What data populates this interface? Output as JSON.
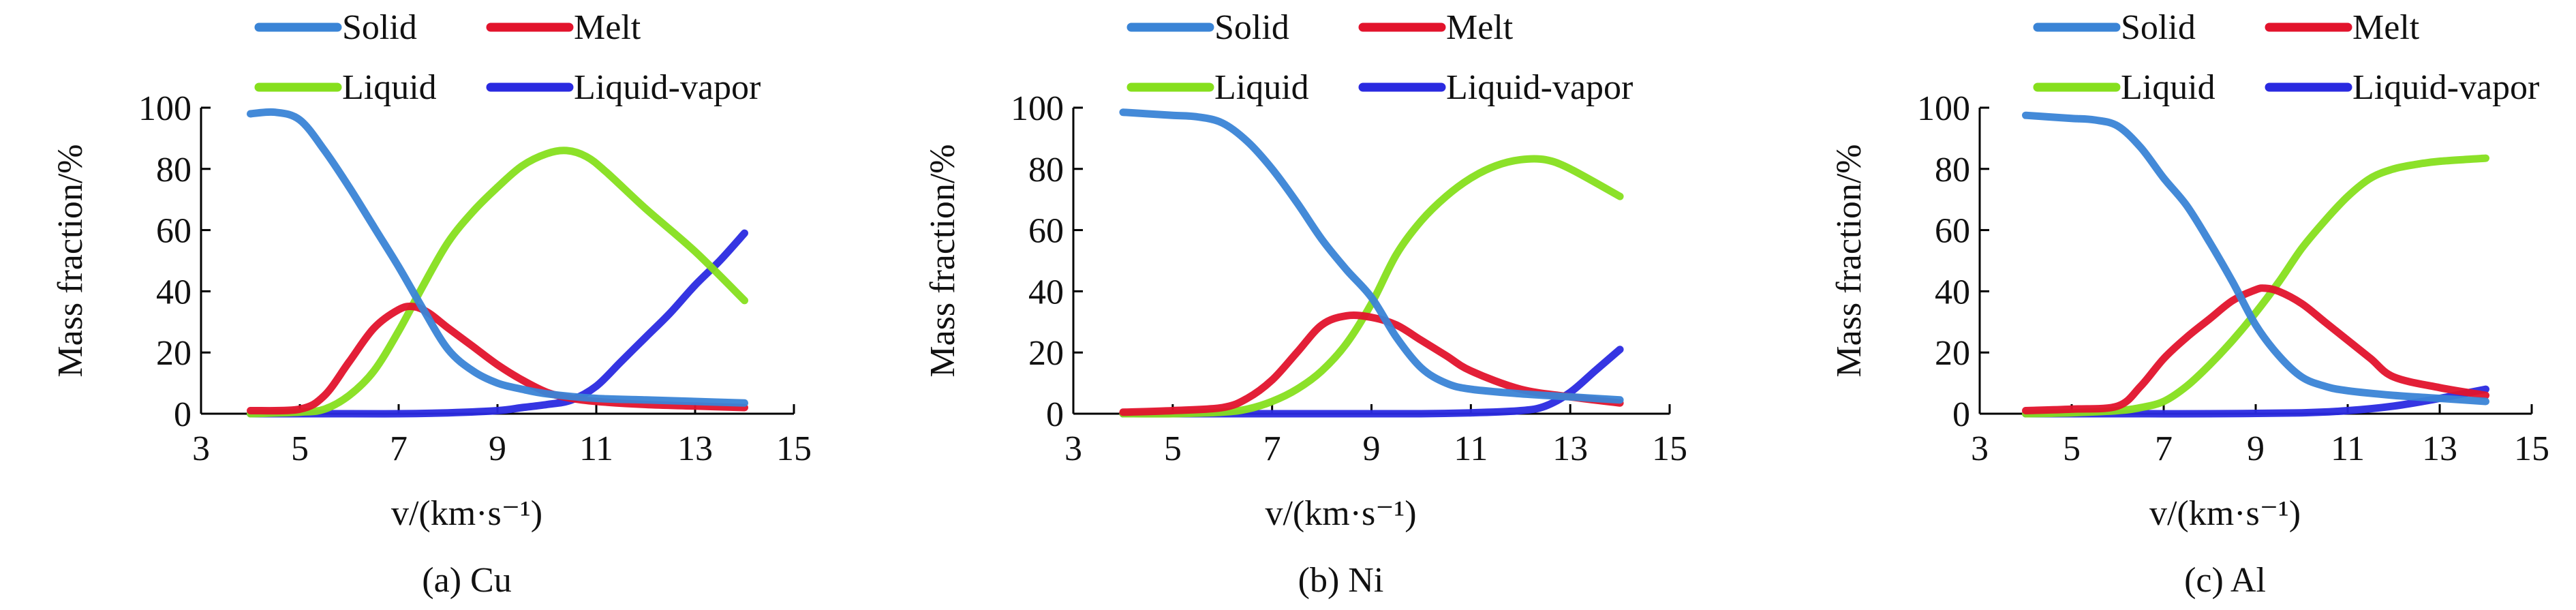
{
  "legend_labels": [
    "Solid",
    "Melt",
    "Liquid",
    "Liquid-vapor"
  ],
  "colors": {
    "Solid": "#3a84d6",
    "Melt": "#e2132c",
    "Liquid": "#86df1d",
    "Liquid-vapor": "#2a2ae0",
    "axis": "#000000"
  },
  "chart_data": [
    {
      "type": "line",
      "caption": "(a) Cu",
      "xlabel": "v/(km·s⁻¹)",
      "ylabel": "Mass fraction/%",
      "xlim": [
        3,
        15
      ],
      "ylim": [
        0,
        100
      ],
      "xticks": [
        3,
        5,
        7,
        9,
        11,
        13,
        15
      ],
      "yticks": [
        0,
        20,
        40,
        60,
        80,
        100
      ],
      "grid": false,
      "legend_position": "top",
      "series": [
        {
          "name": "Solid",
          "x": [
            4,
            4.5,
            5,
            5.5,
            6,
            6.5,
            7,
            7.5,
            8,
            8.5,
            9,
            9.5,
            10,
            11,
            12,
            13,
            14
          ],
          "y": [
            98,
            98.5,
            96,
            86,
            74,
            61,
            48,
            34,
            21,
            14,
            10,
            8,
            6.5,
            5,
            4.5,
            4,
            3.5
          ]
        },
        {
          "name": "Melt",
          "x": [
            4,
            5,
            5.5,
            6,
            6.5,
            7,
            7.3,
            7.6,
            8,
            8.5,
            9,
            9.5,
            10,
            10.5,
            11,
            12,
            13,
            14
          ],
          "y": [
            1,
            1.5,
            6,
            17,
            28,
            34,
            35,
            33,
            28,
            22,
            16,
            11,
            7,
            5,
            4,
            3,
            2.5,
            2
          ]
        },
        {
          "name": "Liquid",
          "x": [
            4,
            5,
            5.5,
            6,
            6.5,
            7,
            7.5,
            8,
            8.5,
            9,
            9.5,
            10,
            10.4,
            10.8,
            11.2,
            12,
            13,
            14
          ],
          "y": [
            0,
            0.5,
            1.5,
            6,
            14,
            27,
            42,
            56,
            66,
            74,
            81,
            85,
            86,
            84,
            79,
            67,
            53,
            37
          ]
        },
        {
          "name": "Liquid-vapor",
          "x": [
            4,
            6,
            7,
            8,
            9,
            9.5,
            10,
            10.5,
            11,
            11.5,
            12,
            12.5,
            13,
            13.5,
            14
          ],
          "y": [
            0,
            0,
            0,
            0.3,
            1,
            2,
            3,
            4.5,
            9,
            17,
            25,
            33,
            42,
            50,
            59
          ]
        }
      ]
    },
    {
      "type": "line",
      "caption": "(b) Ni",
      "xlabel": "v/(km·s⁻¹)",
      "ylabel": "Mass fraction/%",
      "xlim": [
        3,
        15
      ],
      "ylim": [
        0,
        100
      ],
      "xticks": [
        3,
        5,
        7,
        9,
        11,
        13,
        15
      ],
      "yticks": [
        0,
        20,
        40,
        60,
        80,
        100
      ],
      "grid": false,
      "legend_position": "top",
      "series": [
        {
          "name": "Solid",
          "x": [
            4,
            4.5,
            5,
            5.5,
            6,
            6.5,
            7,
            7.5,
            8,
            8.5,
            9,
            9.5,
            10,
            10.5,
            11,
            12,
            13,
            14
          ],
          "y": [
            98.5,
            98,
            97.5,
            97,
            95,
            89,
            80,
            69,
            57,
            47,
            38,
            25,
            15,
            10,
            8,
            6.5,
            5.5,
            4.5
          ]
        },
        {
          "name": "Melt",
          "x": [
            4,
            5,
            6,
            6.5,
            7,
            7.5,
            8,
            8.5,
            9,
            9.5,
            10,
            10.5,
            11,
            12,
            13,
            14
          ],
          "y": [
            0.5,
            1,
            2,
            5,
            11,
            20,
            29,
            32,
            31.5,
            29,
            24,
            19,
            14,
            8,
            5.5,
            3.5
          ]
        },
        {
          "name": "Liquid",
          "x": [
            4,
            5,
            6,
            6.5,
            7,
            7.5,
            8,
            8.5,
            9,
            9.5,
            10,
            10.5,
            11,
            11.5,
            12,
            12.5,
            13,
            14
          ],
          "y": [
            0,
            0,
            0.5,
            1.5,
            4,
            8,
            14,
            23,
            36,
            52,
            63,
            71,
            77,
            81,
            83,
            83,
            80,
            71
          ]
        },
        {
          "name": "Liquid-vapor",
          "x": [
            4,
            6,
            8,
            10,
            11,
            12,
            12.5,
            13,
            13.5,
            14
          ],
          "y": [
            0,
            0,
            0,
            0,
            0.3,
            1,
            2.5,
            7,
            14,
            21
          ]
        }
      ]
    },
    {
      "type": "line",
      "caption": "(c) Al",
      "xlabel": "v/(km·s⁻¹)",
      "ylabel": "Mass fraction/%",
      "xlim": [
        3,
        15
      ],
      "ylim": [
        0,
        100
      ],
      "xticks": [
        3,
        5,
        7,
        9,
        11,
        13,
        15
      ],
      "yticks": [
        0,
        20,
        40,
        60,
        80,
        100
      ],
      "grid": false,
      "legend_position": "top",
      "series": [
        {
          "name": "Solid",
          "x": [
            4,
            4.5,
            5,
            5.5,
            6,
            6.5,
            7,
            7.5,
            8,
            8.5,
            9,
            9.5,
            10,
            10.5,
            11,
            12,
            13,
            14
          ],
          "y": [
            97.5,
            97,
            96.5,
            96,
            94,
            87,
            77,
            68,
            56,
            43,
            29,
            19,
            12,
            9,
            7.5,
            6,
            5,
            4
          ]
        },
        {
          "name": "Melt",
          "x": [
            4,
            5,
            6,
            6.5,
            7,
            7.5,
            8,
            8.5,
            9,
            9.2,
            9.5,
            10,
            10.5,
            11,
            11.5,
            12,
            13,
            14
          ],
          "y": [
            1,
            1.5,
            2.5,
            9,
            18,
            25,
            31,
            37,
            40.5,
            41,
            40,
            36,
            30,
            24,
            18,
            12,
            8.5,
            6
          ]
        },
        {
          "name": "Liquid",
          "x": [
            4,
            5,
            6,
            6.5,
            7,
            7.5,
            8,
            8.5,
            9,
            9.5,
            10,
            10.5,
            11,
            11.5,
            12,
            12.5,
            13,
            14
          ],
          "y": [
            0,
            0.3,
            1,
            2,
            4,
            9,
            16,
            24,
            33,
            43,
            54,
            63,
            71,
            77,
            80,
            81.5,
            82.5,
            83.5
          ]
        },
        {
          "name": "Liquid-vapor",
          "x": [
            4,
            6,
            8,
            10,
            11,
            12,
            13,
            13.5,
            14
          ],
          "y": [
            0,
            0,
            0,
            0.3,
            1,
            2.5,
            5,
            6.5,
            8
          ]
        }
      ]
    }
  ]
}
